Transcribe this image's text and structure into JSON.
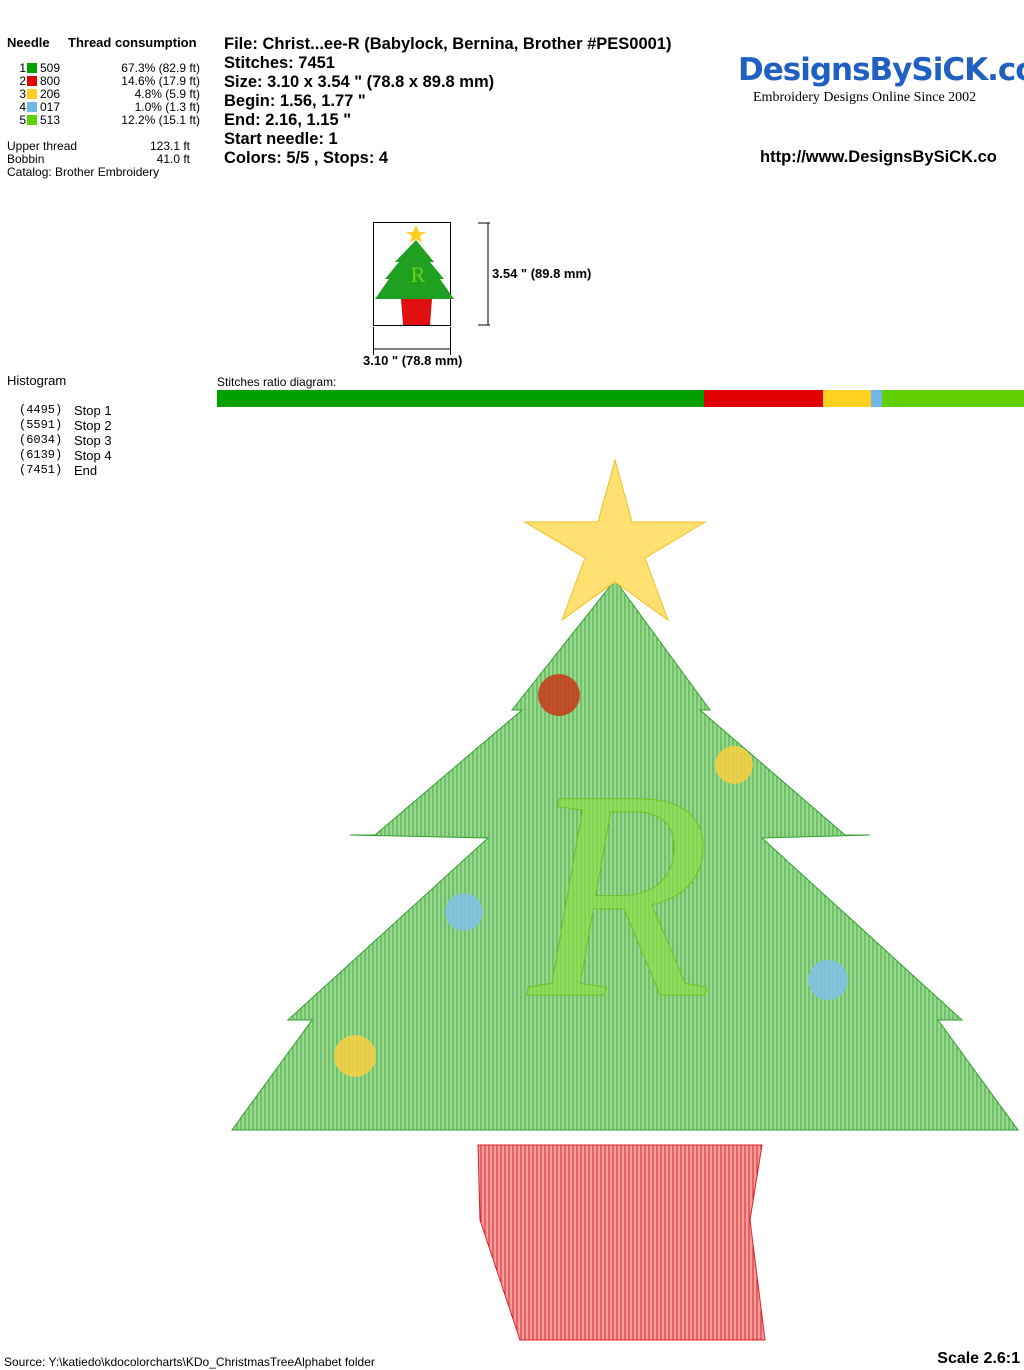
{
  "needles": {
    "header_needle": "Needle",
    "header_thread": "Thread consumption",
    "rows": [
      {
        "num": "1",
        "color": "#00a000",
        "code": "509",
        "usage": "67.3% (82.9 ft)"
      },
      {
        "num": "2",
        "color": "#e00000",
        "code": "800",
        "usage": "14.6% (17.9 ft)"
      },
      {
        "num": "3",
        "color": "#ffd020",
        "code": "206",
        "usage": "4.8% (5.9 ft)"
      },
      {
        "num": "4",
        "color": "#70b8e8",
        "code": "017",
        "usage": "1.0% (1.3 ft)"
      },
      {
        "num": "5",
        "color": "#60d000",
        "code": "513",
        "usage": "12.2% (15.1 ft)"
      }
    ]
  },
  "totals": {
    "upper_label": "Upper thread",
    "upper_value": "123.1 ft",
    "bobbin_label": "Bobbin",
    "bobbin_value": "41.0 ft",
    "catalog": "Catalog: Brother Embroidery"
  },
  "info": {
    "file": "File: Christ...ee-R  (Babylock, Bernina, Brother #PES0001)",
    "stitches": "Stitches: 7451",
    "size": "Size: 3.10 x 3.54 \" (78.8 x 89.8 mm)",
    "begin": "Begin: 1.56, 1.77 \"",
    "end": "End: 2.16, 1.15 \"",
    "start_needle": "Start needle: 1",
    "colors": "Colors: 5/5 , Stops: 4"
  },
  "logo": {
    "name": "DesignsBySiCK.com",
    "tagline": "Embroidery Designs Online Since 2002",
    "url": "http://www.DesignsBySiCK.co"
  },
  "thumb": {
    "height_label": "3.54 \" (89.8 mm)",
    "width_label": "3.10 \" (78.8 mm)"
  },
  "histogram": {
    "title": "Histogram",
    "total": 7451,
    "stops": [
      {
        "count": "(4495)",
        "label": "Stop 1",
        "value": 4495
      },
      {
        "count": "(5591)",
        "label": "Stop 2",
        "value": 5591
      },
      {
        "count": "(6034)",
        "label": "Stop 3",
        "value": 6034
      },
      {
        "count": "(6139)",
        "label": "Stop 4",
        "value": 6139
      },
      {
        "count": "(7451)",
        "label": "End",
        "value": 7451
      }
    ]
  },
  "ratio_label": "Stitches ratio diagram:",
  "footer": {
    "source": "Source: Y:\\katiedo\\kdocolorcharts\\KDo_ChristmasTreeAlphabet folder",
    "scale": "Scale 2.6:1"
  }
}
